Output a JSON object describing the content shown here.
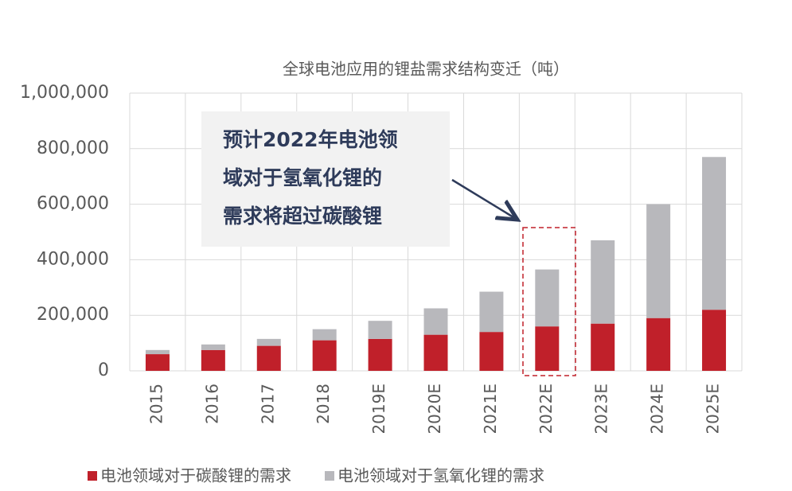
{
  "chart_data": {
    "type": "stacked-bar",
    "title": "全球电池应用的锂盐需求结构变迁（吨）",
    "categories": [
      "2015",
      "2016",
      "2017",
      "2018",
      "2019E",
      "2020E",
      "2021E",
      "2022E",
      "2023E",
      "2024E",
      "2025E"
    ],
    "series": [
      {
        "name": "电池领域对于碳酸锂的需求",
        "color": "#c0202a",
        "values": [
          60000,
          75000,
          90000,
          110000,
          115000,
          130000,
          140000,
          160000,
          170000,
          190000,
          220000
        ]
      },
      {
        "name": "电池领域对于氢氧化锂的需求",
        "color": "#b8b8bc",
        "values": [
          15000,
          20000,
          25000,
          40000,
          65000,
          95000,
          145000,
          205000,
          300000,
          410000,
          550000
        ]
      }
    ],
    "ylim": [
      0,
      1000000
    ],
    "yticks": [
      0,
      {
        "value": 200000,
        "label": "200,000"
      },
      {
        "value": 400000,
        "label": "400,000"
      },
      {
        "value": 600000,
        "label": "600,000"
      },
      {
        "value": 800000,
        "label": "800,000"
      },
      {
        "value": 1000000,
        "label": "1,000,000"
      }
    ],
    "grid": true,
    "legend": "bottom",
    "annotation": [
      "预计2022年电池领",
      "域对于氢氧化锂的",
      "需求将超过碳酸锂"
    ]
  }
}
